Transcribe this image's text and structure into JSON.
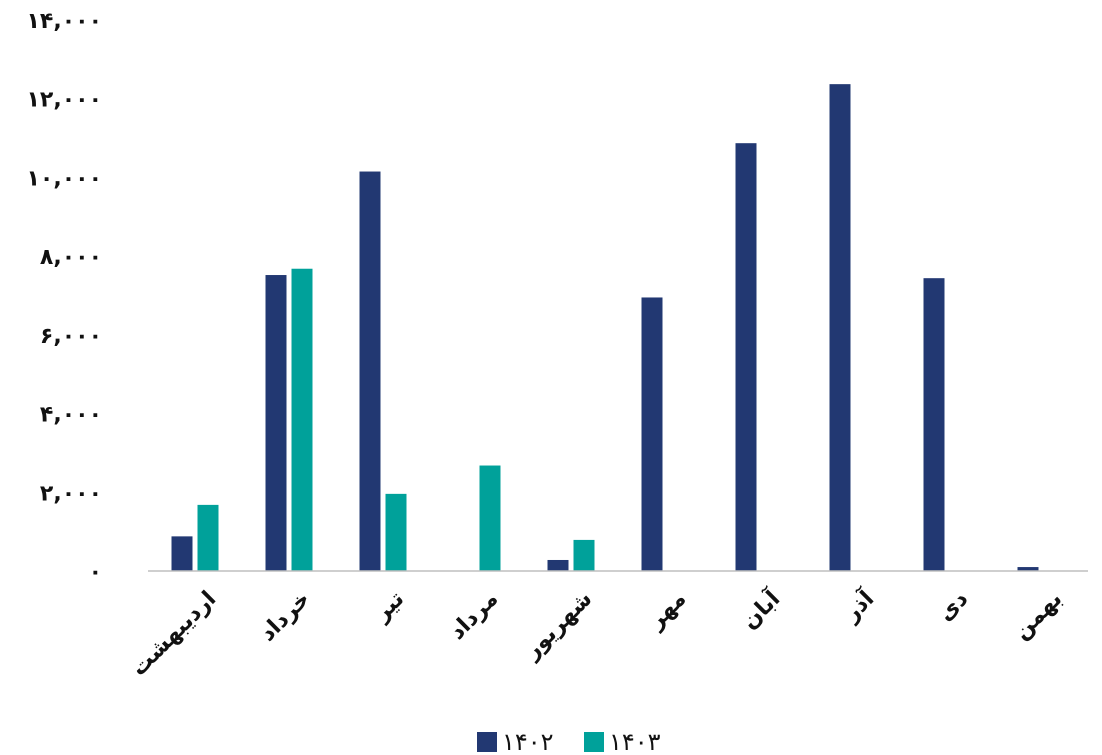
{
  "chart_data": {
    "type": "bar",
    "categories": [
      "اردیبهشت",
      "خرداد",
      "تیر",
      "مرداد",
      "شهریور",
      "مهر",
      "آبان",
      "آذر",
      "دی",
      "بهمن"
    ],
    "series": [
      {
        "name": "۱۴۰۲",
        "color": "#223872",
        "values": [
          880,
          7520,
          10150,
          0,
          280,
          6950,
          10870,
          12370,
          7440,
          100
        ]
      },
      {
        "name": "۱۴۰۳",
        "color": "#00A19A",
        "values": [
          1680,
          7680,
          1960,
          2680,
          790,
          0,
          0,
          0,
          0,
          0
        ]
      }
    ],
    "ylim": [
      0,
      14000
    ],
    "yticks": [
      "۰",
      "۲,۰۰۰",
      "۴,۰۰۰",
      "۶,۰۰۰",
      "۸,۰۰۰",
      "۱۰,۰۰۰",
      "۱۲,۰۰۰",
      "۱۴,۰۰۰"
    ],
    "ytick_values": [
      0,
      2000,
      4000,
      6000,
      8000,
      10000,
      12000,
      14000
    ],
    "legend_position": "bottom",
    "grid": false,
    "title": "",
    "xlabel": "",
    "ylabel": ""
  }
}
